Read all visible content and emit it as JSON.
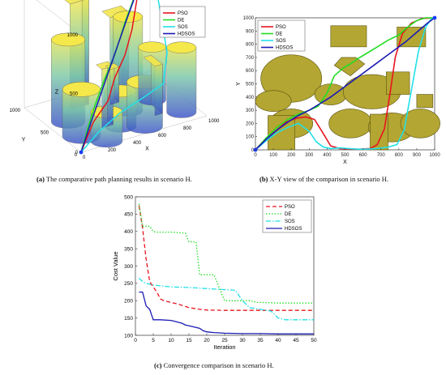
{
  "colors": {
    "pso": "#e8141e",
    "de": "#22dd22",
    "sos": "#22e0e8",
    "hdsos": "#1a1ab4",
    "obstacle": "#b3a632",
    "obstacle_edge": "#5a5210"
  },
  "panel_a": {
    "caption_label": "(a)",
    "caption_text": " The comparative path planning results in scenario H.",
    "axis_z": "Z",
    "axis_y": "Y",
    "axis_x": "X",
    "z_ticks": [
      "0",
      "500",
      "1000"
    ],
    "y_ticks": [
      "0",
      "500",
      "1000"
    ],
    "x_ticks": [
      "0",
      "200",
      "400",
      "600",
      "800",
      "1000"
    ],
    "legend": [
      "PSO",
      "DE",
      "SOS",
      "HDSOS"
    ]
  },
  "chart_data": [
    {
      "type": "line",
      "title": "",
      "xlabel": "X",
      "ylabel": "Y",
      "xlim": [
        0,
        1000
      ],
      "ylim": [
        0,
        1000
      ],
      "xticks": [
        "0",
        "100",
        "200",
        "300",
        "400",
        "500",
        "600",
        "700",
        "800",
        "900",
        "1000"
      ],
      "yticks": [
        "0",
        "100",
        "200",
        "300",
        "400",
        "500",
        "600",
        "700",
        "800",
        "900",
        "1000"
      ],
      "legend_position": "top-left",
      "caption_label": "(b)",
      "caption_text": " X-Y view of the comparison in scenario H.",
      "series": [
        {
          "name": "PSO",
          "color": "#e8141e",
          "x": [
            0,
            60,
            120,
            170,
            230,
            280,
            330,
            380,
            420,
            470,
            530,
            580,
            640,
            680,
            720,
            750,
            780,
            820,
            870,
            930,
            1000
          ],
          "y": [
            0,
            90,
            150,
            210,
            240,
            250,
            230,
            120,
            30,
            10,
            5,
            5,
            10,
            40,
            160,
            420,
            700,
            880,
            960,
            995,
            1000
          ]
        },
        {
          "name": "DE",
          "color": "#22dd22",
          "x": [
            0,
            60,
            120,
            180,
            240,
            300,
            350,
            400,
            440,
            490,
            530,
            570,
            620,
            680,
            740,
            800,
            850,
            900,
            950,
            1000
          ],
          "y": [
            0,
            90,
            170,
            230,
            270,
            300,
            330,
            430,
            560,
            620,
            650,
            690,
            730,
            780,
            830,
            870,
            930,
            980,
            1000,
            1000
          ]
        },
        {
          "name": "SOS",
          "color": "#22e0e8",
          "x": [
            0,
            60,
            120,
            180,
            240,
            300,
            340,
            380,
            420,
            470,
            520,
            570,
            620,
            680,
            740,
            790,
            830,
            870,
            910,
            950,
            980,
            1000
          ],
          "y": [
            0,
            70,
            130,
            170,
            200,
            140,
            60,
            20,
            10,
            15,
            10,
            5,
            5,
            10,
            20,
            40,
            150,
            450,
            750,
            930,
            990,
            1000
          ]
        },
        {
          "name": "HDSOS",
          "color": "#1a1ab4",
          "x": [
            0,
            60,
            120,
            180,
            240,
            300,
            360,
            420,
            480,
            540,
            600,
            660,
            720,
            780,
            840,
            900,
            960,
            1000
          ],
          "y": [
            0,
            80,
            150,
            210,
            260,
            300,
            350,
            400,
            460,
            520,
            580,
            640,
            700,
            760,
            820,
            890,
            960,
            1000
          ]
        }
      ]
    },
    {
      "type": "line",
      "title": "",
      "xlabel": "Iteration",
      "ylabel": "Cost Value",
      "xlim": [
        0,
        50
      ],
      "ylim": [
        100,
        500
      ],
      "xticks": [
        "0",
        "5",
        "10",
        "15",
        "20",
        "25",
        "30",
        "35",
        "40",
        "45",
        "50"
      ],
      "yticks": [
        "100",
        "150",
        "200",
        "250",
        "300",
        "350",
        "400",
        "450",
        "500"
      ],
      "legend_position": "top-right",
      "caption_label": "(c)",
      "caption_text": " Convergence comparison in scenario H.",
      "series": [
        {
          "name": "PSO",
          "color": "#e8141e",
          "dash": "5,3",
          "x": [
            1,
            2,
            3,
            4,
            5,
            6,
            7,
            8,
            10,
            12,
            15,
            18,
            20,
            25,
            30,
            35,
            40,
            45,
            50
          ],
          "y": [
            475,
            410,
            320,
            255,
            240,
            225,
            205,
            200,
            195,
            190,
            180,
            175,
            173,
            172,
            172,
            172,
            172,
            172,
            172
          ]
        },
        {
          "name": "DE",
          "color": "#22dd22",
          "dash": "1.5,2",
          "x": [
            1,
            2,
            3,
            4,
            5,
            6,
            10,
            14,
            15,
            16,
            17,
            18,
            19,
            20,
            22,
            24,
            25,
            26,
            28,
            30,
            32,
            34,
            35,
            40,
            45,
            50
          ],
          "y": [
            480,
            415,
            415,
            415,
            400,
            398,
            398,
            395,
            370,
            370,
            370,
            275,
            275,
            275,
            275,
            225,
            200,
            200,
            200,
            200,
            200,
            195,
            195,
            193,
            193,
            193
          ]
        },
        {
          "name": "SOS",
          "color": "#22e0e8",
          "dash": "6,2,1.5,2",
          "x": [
            1,
            2,
            3,
            5,
            8,
            10,
            15,
            20,
            25,
            28,
            30,
            32,
            35,
            38,
            40,
            42,
            45,
            50
          ],
          "y": [
            265,
            255,
            250,
            245,
            242,
            240,
            238,
            235,
            232,
            230,
            200,
            180,
            175,
            170,
            150,
            145,
            145,
            145
          ]
        },
        {
          "name": "HDSOS",
          "color": "#1a1ab4",
          "dash": "",
          "x": [
            1,
            2,
            3,
            4,
            5,
            7,
            10,
            13,
            14,
            16,
            18,
            19,
            20,
            22,
            25,
            30,
            35,
            40,
            45,
            50
          ],
          "y": [
            225,
            225,
            185,
            175,
            145,
            145,
            143,
            135,
            130,
            125,
            120,
            113,
            110,
            108,
            106,
            105,
            105,
            104,
            104,
            104
          ]
        }
      ]
    }
  ]
}
